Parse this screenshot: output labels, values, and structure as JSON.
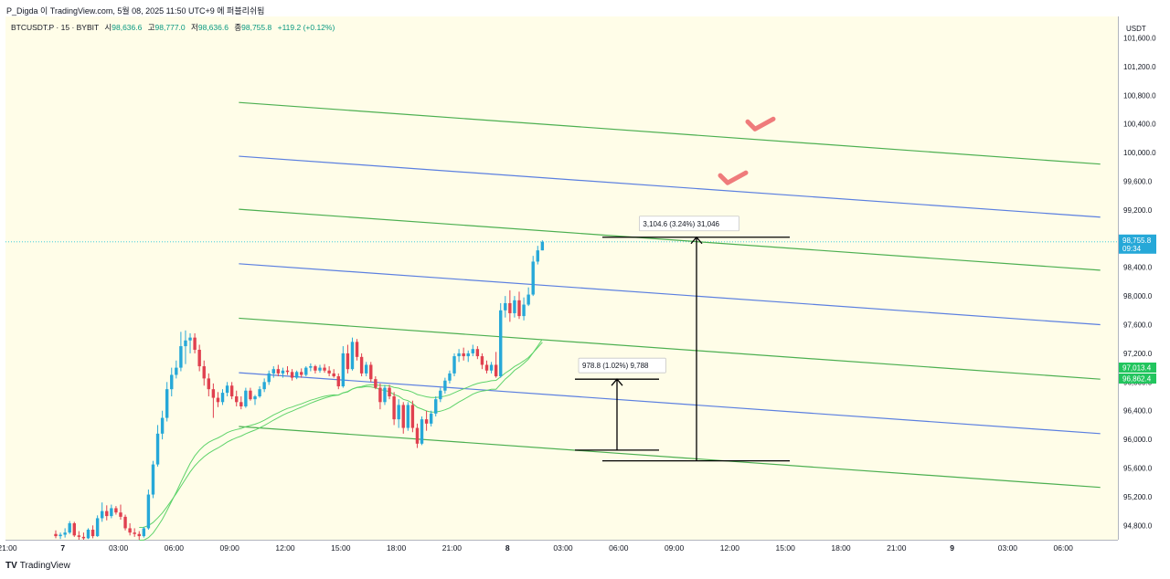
{
  "header": {
    "title": "P_Digda 이 TradingView.com, 5월 08, 2025 11:50 UTC+9 에 퍼블리쉬됨"
  },
  "legend": {
    "symbol": "BTCUSDT.P · 15 · BYBIT",
    "open_label": "시",
    "open": "98,636.6",
    "high_label": "고",
    "high": "98,777.0",
    "low_label": "저",
    "low": "98,636.6",
    "close_label": "종",
    "close": "98,755.8",
    "change": "+119.2 (+0.12%)"
  },
  "footer": {
    "brand": "TradingView",
    "logo": "TV"
  },
  "chart_data": {
    "type": "candlestick",
    "currency": "USDT",
    "y_ticks": [
      101600,
      101200,
      100800,
      100400,
      100000,
      99600,
      99200,
      98800,
      98400,
      98000,
      97600,
      97200,
      96800,
      96400,
      96000,
      95600,
      95200,
      94800
    ],
    "y_tick_labels": [
      "101,600.0",
      "101,200.0",
      "100,800.0",
      "100,400.0",
      "100,000.0",
      "99,600.0",
      "99,200.0",
      "98,800.0",
      "98,400.0",
      "98,000.0",
      "97,600.0",
      "97,200.0",
      "96,800.0",
      "96,400.0",
      "96,000.0",
      "95,600.0",
      "95,200.0",
      "94,800.0"
    ],
    "ylim": [
      94600,
      101900
    ],
    "x_ticks": [
      "21:00",
      "7",
      "03:00",
      "06:00",
      "09:00",
      "12:00",
      "15:00",
      "18:00",
      "21:00",
      "8",
      "03:00",
      "06:00",
      "09:00",
      "12:00",
      "15:00",
      "18:00",
      "21:00",
      "9",
      "03:00",
      "06:00"
    ],
    "last_price": {
      "value": 98755.8,
      "label": "98,755.8",
      "countdown": "09:34"
    },
    "ma_labels": [
      {
        "value": 97013.4,
        "label": "97,013.4"
      },
      {
        "value": 96862.4,
        "label": "96,862.4"
      }
    ],
    "measurements": [
      {
        "text": "978.8 (1.02%) 9,788",
        "from": 95850,
        "to": 96840
      },
      {
        "text": "3,104.6 (3.24%) 31,046",
        "from": 95700,
        "to": 98820
      }
    ],
    "channel_lines": [
      {
        "color": "#4caf50",
        "p1": [
          "5/7 09:30",
          100700
        ],
        "p2": [
          "5/9 08:00",
          99840
        ]
      },
      {
        "color": "#5b7fe0",
        "p1": [
          "5/7 09:30",
          99950
        ],
        "p2": [
          "5/9 08:00",
          99100
        ]
      },
      {
        "color": "#4caf50",
        "p1": [
          "5/7 09:30",
          99210
        ],
        "p2": [
          "5/9 08:00",
          98360
        ]
      },
      {
        "color": "#5b7fe0",
        "p1": [
          "5/7 09:30",
          98450
        ],
        "p2": [
          "5/9 08:00",
          97600
        ]
      },
      {
        "color": "#4caf50",
        "p1": [
          "5/7 09:30",
          97690
        ],
        "p2": [
          "5/9 08:00",
          96840
        ]
      },
      {
        "color": "#5b7fe0",
        "p1": [
          "5/7 09:30",
          96930
        ],
        "p2": [
          "5/9 08:00",
          96080
        ]
      },
      {
        "color": "#4caf50",
        "p1": [
          "5/7 09:30",
          96180
        ],
        "p2": [
          "5/9 08:00",
          95330
        ]
      }
    ],
    "checkmarks": [
      {
        "value": 100380
      },
      {
        "value": 99630
      }
    ],
    "candles": [
      {
        "o": 94680,
        "h": 94730,
        "l": 94620,
        "c": 94650
      },
      {
        "o": 94650,
        "h": 94700,
        "l": 94610,
        "c": 94670
      },
      {
        "o": 94670,
        "h": 94760,
        "l": 94630,
        "c": 94700
      },
      {
        "o": 94700,
        "h": 94860,
        "l": 94680,
        "c": 94830
      },
      {
        "o": 94830,
        "h": 94850,
        "l": 94640,
        "c": 94660
      },
      {
        "o": 94660,
        "h": 94720,
        "l": 94600,
        "c": 94640
      },
      {
        "o": 94640,
        "h": 94700,
        "l": 94600,
        "c": 94620
      },
      {
        "o": 94620,
        "h": 94760,
        "l": 94610,
        "c": 94740
      },
      {
        "o": 94740,
        "h": 94800,
        "l": 94620,
        "c": 94650
      },
      {
        "o": 94650,
        "h": 94940,
        "l": 94640,
        "c": 94900
      },
      {
        "o": 94900,
        "h": 95120,
        "l": 94850,
        "c": 95000
      },
      {
        "o": 95000,
        "h": 95080,
        "l": 94870,
        "c": 94930
      },
      {
        "o": 94930,
        "h": 95090,
        "l": 94900,
        "c": 95040
      },
      {
        "o": 95040,
        "h": 95070,
        "l": 94950,
        "c": 94980
      },
      {
        "o": 94980,
        "h": 95090,
        "l": 94880,
        "c": 94920
      },
      {
        "o": 94920,
        "h": 94950,
        "l": 94730,
        "c": 94760
      },
      {
        "o": 94760,
        "h": 94830,
        "l": 94660,
        "c": 94700
      },
      {
        "o": 94700,
        "h": 94760,
        "l": 94640,
        "c": 94680
      },
      {
        "o": 94680,
        "h": 94720,
        "l": 94600,
        "c": 94650
      },
      {
        "o": 94650,
        "h": 94780,
        "l": 94630,
        "c": 94760
      },
      {
        "o": 94760,
        "h": 95300,
        "l": 94740,
        "c": 95230
      },
      {
        "o": 95230,
        "h": 95700,
        "l": 95180,
        "c": 95650
      },
      {
        "o": 95650,
        "h": 96200,
        "l": 95620,
        "c": 96080
      },
      {
        "o": 96080,
        "h": 96400,
        "l": 96000,
        "c": 96300
      },
      {
        "o": 96300,
        "h": 96800,
        "l": 96250,
        "c": 96700
      },
      {
        "o": 96700,
        "h": 97000,
        "l": 96600,
        "c": 96900
      },
      {
        "o": 96900,
        "h": 97100,
        "l": 96850,
        "c": 97000
      },
      {
        "o": 97000,
        "h": 97500,
        "l": 96950,
        "c": 97300
      },
      {
        "o": 97300,
        "h": 97520,
        "l": 97050,
        "c": 97380
      },
      {
        "o": 97380,
        "h": 97480,
        "l": 97200,
        "c": 97420
      },
      {
        "o": 97420,
        "h": 97480,
        "l": 97200,
        "c": 97250
      },
      {
        "o": 97250,
        "h": 97320,
        "l": 96950,
        "c": 97020
      },
      {
        "o": 97020,
        "h": 97100,
        "l": 96750,
        "c": 96850
      },
      {
        "o": 96850,
        "h": 96920,
        "l": 96600,
        "c": 96700
      },
      {
        "o": 96700,
        "h": 96780,
        "l": 96300,
        "c": 96580
      },
      {
        "o": 96580,
        "h": 96660,
        "l": 96450,
        "c": 96520
      },
      {
        "o": 96520,
        "h": 96700,
        "l": 96480,
        "c": 96650
      },
      {
        "o": 96650,
        "h": 96800,
        "l": 96600,
        "c": 96750
      },
      {
        "o": 96750,
        "h": 96800,
        "l": 96560,
        "c": 96600
      },
      {
        "o": 96600,
        "h": 96680,
        "l": 96460,
        "c": 96520
      },
      {
        "o": 96520,
        "h": 96600,
        "l": 96420,
        "c": 96460
      },
      {
        "o": 96460,
        "h": 96720,
        "l": 96440,
        "c": 96680
      },
      {
        "o": 96680,
        "h": 96720,
        "l": 96540,
        "c": 96560
      },
      {
        "o": 96560,
        "h": 96620,
        "l": 96480,
        "c": 96600
      },
      {
        "o": 96600,
        "h": 96740,
        "l": 96580,
        "c": 96700
      },
      {
        "o": 96700,
        "h": 96850,
        "l": 96660,
        "c": 96800
      },
      {
        "o": 96800,
        "h": 96960,
        "l": 96760,
        "c": 96920
      },
      {
        "o": 96920,
        "h": 97020,
        "l": 96860,
        "c": 96980
      },
      {
        "o": 96980,
        "h": 97040,
        "l": 96880,
        "c": 96920
      },
      {
        "o": 96920,
        "h": 97000,
        "l": 96860,
        "c": 96960
      },
      {
        "o": 96960,
        "h": 97020,
        "l": 96900,
        "c": 96940
      },
      {
        "o": 96940,
        "h": 96980,
        "l": 96820,
        "c": 96860
      },
      {
        "o": 96860,
        "h": 96960,
        "l": 96840,
        "c": 96940
      },
      {
        "o": 96940,
        "h": 96990,
        "l": 96860,
        "c": 96900
      },
      {
        "o": 96900,
        "h": 97020,
        "l": 96880,
        "c": 97000
      },
      {
        "o": 97000,
        "h": 97060,
        "l": 96950,
        "c": 97020
      },
      {
        "o": 97020,
        "h": 97040,
        "l": 96920,
        "c": 96960
      },
      {
        "o": 96960,
        "h": 97040,
        "l": 96930,
        "c": 97000
      },
      {
        "o": 97000,
        "h": 97050,
        "l": 96930,
        "c": 96960
      },
      {
        "o": 96960,
        "h": 97020,
        "l": 96880,
        "c": 96920
      },
      {
        "o": 96920,
        "h": 96980,
        "l": 96860,
        "c": 96880
      },
      {
        "o": 96880,
        "h": 96920,
        "l": 96700,
        "c": 96740
      },
      {
        "o": 96740,
        "h": 97300,
        "l": 96720,
        "c": 97200
      },
      {
        "o": 97200,
        "h": 97320,
        "l": 96920,
        "c": 96980
      },
      {
        "o": 96980,
        "h": 97420,
        "l": 96960,
        "c": 97360
      },
      {
        "o": 97360,
        "h": 97400,
        "l": 97100,
        "c": 97150
      },
      {
        "o": 97150,
        "h": 97200,
        "l": 96880,
        "c": 96920
      },
      {
        "o": 96920,
        "h": 97080,
        "l": 96880,
        "c": 97040
      },
      {
        "o": 97040,
        "h": 97080,
        "l": 96800,
        "c": 96840
      },
      {
        "o": 96840,
        "h": 96880,
        "l": 96700,
        "c": 96720
      },
      {
        "o": 96720,
        "h": 96780,
        "l": 96420,
        "c": 96520
      },
      {
        "o": 96520,
        "h": 96760,
        "l": 96480,
        "c": 96720
      },
      {
        "o": 96720,
        "h": 96760,
        "l": 96560,
        "c": 96600
      },
      {
        "o": 96600,
        "h": 96660,
        "l": 96200,
        "c": 96280
      },
      {
        "o": 96280,
        "h": 96560,
        "l": 96160,
        "c": 96480
      },
      {
        "o": 96480,
        "h": 96520,
        "l": 96080,
        "c": 96160
      },
      {
        "o": 96160,
        "h": 96520,
        "l": 96120,
        "c": 96480
      },
      {
        "o": 96480,
        "h": 96540,
        "l": 96100,
        "c": 96160
      },
      {
        "o": 96160,
        "h": 96220,
        "l": 95880,
        "c": 95940
      },
      {
        "o": 95940,
        "h": 96320,
        "l": 95920,
        "c": 96280
      },
      {
        "o": 96280,
        "h": 96400,
        "l": 96120,
        "c": 96220
      },
      {
        "o": 96220,
        "h": 96400,
        "l": 96180,
        "c": 96360
      },
      {
        "o": 96360,
        "h": 96600,
        "l": 96320,
        "c": 96560
      },
      {
        "o": 96560,
        "h": 96720,
        "l": 96520,
        "c": 96680
      },
      {
        "o": 96680,
        "h": 96860,
        "l": 96640,
        "c": 96820
      },
      {
        "o": 96820,
        "h": 96960,
        "l": 96780,
        "c": 96920
      },
      {
        "o": 96920,
        "h": 97200,
        "l": 96880,
        "c": 97160
      },
      {
        "o": 97160,
        "h": 97260,
        "l": 97080,
        "c": 97200
      },
      {
        "o": 97200,
        "h": 97280,
        "l": 97100,
        "c": 97160
      },
      {
        "o": 97160,
        "h": 97240,
        "l": 97080,
        "c": 97200
      },
      {
        "o": 97200,
        "h": 97320,
        "l": 97160,
        "c": 97260
      },
      {
        "o": 97260,
        "h": 97300,
        "l": 97120,
        "c": 97160
      },
      {
        "o": 97160,
        "h": 97200,
        "l": 96980,
        "c": 97040
      },
      {
        "o": 97040,
        "h": 97100,
        "l": 96920,
        "c": 96960
      },
      {
        "o": 96960,
        "h": 97080,
        "l": 96920,
        "c": 97040
      },
      {
        "o": 97040,
        "h": 97220,
        "l": 96860,
        "c": 96880
      },
      {
        "o": 96880,
        "h": 97900,
        "l": 96860,
        "c": 97800
      },
      {
        "o": 97800,
        "h": 98000,
        "l": 97700,
        "c": 97900
      },
      {
        "o": 97900,
        "h": 98080,
        "l": 97640,
        "c": 97760
      },
      {
        "o": 97760,
        "h": 98000,
        "l": 97700,
        "c": 97940
      },
      {
        "o": 97940,
        "h": 98060,
        "l": 97680,
        "c": 97720
      },
      {
        "o": 97720,
        "h": 97980,
        "l": 97660,
        "c": 97880
      },
      {
        "o": 97880,
        "h": 98120,
        "l": 97860,
        "c": 98020
      },
      {
        "o": 98020,
        "h": 98560,
        "l": 98000,
        "c": 98480
      },
      {
        "o": 98480,
        "h": 98700,
        "l": 98440,
        "c": 98636.6
      },
      {
        "o": 98636.6,
        "h": 98777,
        "l": 98636.6,
        "c": 98755.8
      }
    ]
  }
}
